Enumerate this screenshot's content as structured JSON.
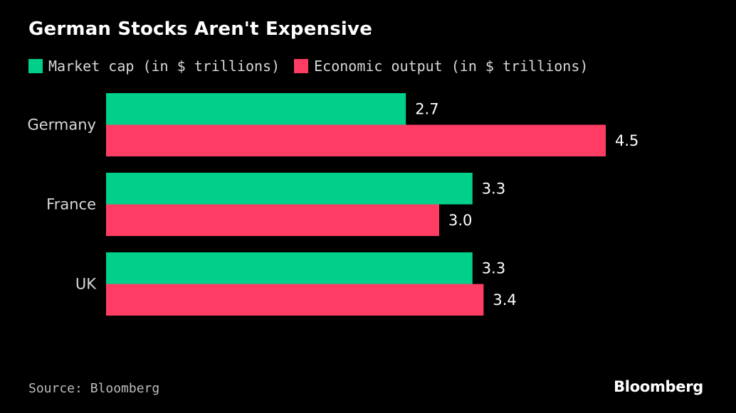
{
  "chart_data": {
    "type": "bar",
    "orientation": "horizontal",
    "title": "German Stocks Aren't Expensive",
    "categories": [
      "Germany",
      "France",
      "UK"
    ],
    "series": [
      {
        "name": "Market cap (in $ trillions)",
        "values": [
          2.7,
          3.3,
          3.3
        ],
        "labels": [
          "2.7",
          "3.3",
          "3.3"
        ],
        "color": "#00d08a"
      },
      {
        "name": "Economic output (in $ trillions)",
        "values": [
          4.5,
          3.0,
          3.4
        ],
        "labels": [
          "4.5",
          "3.0",
          "3.4"
        ],
        "color": "#ff3c64"
      }
    ],
    "xlim": [
      0,
      4.5
    ],
    "grid": false,
    "legend_position": "top-left"
  },
  "source": "Source: Bloomberg",
  "brand": "Bloomberg",
  "colors": {
    "background": "#000000",
    "text": "#ffffff",
    "muted": "#bdbdbd"
  }
}
